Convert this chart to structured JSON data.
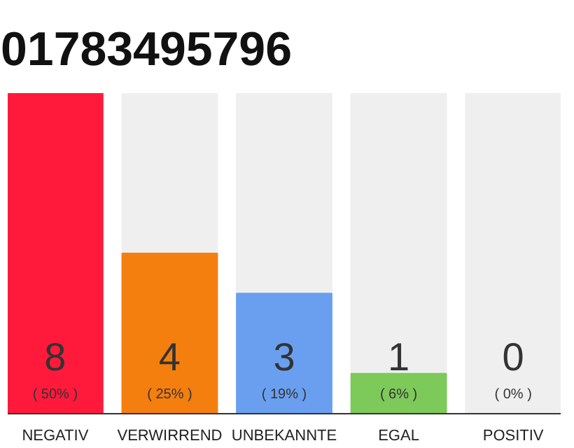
{
  "chart_data": {
    "type": "bar",
    "title": "01783495796",
    "categories": [
      "NEGATIV",
      "VERWIRREND",
      "UNBEKANNTE",
      "EGAL",
      "POSITIV"
    ],
    "values": [
      8,
      4,
      3,
      1,
      0
    ],
    "colors": [
      "#ff1a3c",
      "#f47f0e",
      "#6a9ff0",
      "#7dc95a",
      "#cccccc"
    ],
    "ylim": [
      0,
      8
    ],
    "tick_labels": "x",
    "grid": false,
    "data_labels": true,
    "annotations": [
      "( 50% )",
      "( 25% )",
      "( 19% )",
      "( 6% )",
      "( 0% )"
    ]
  }
}
